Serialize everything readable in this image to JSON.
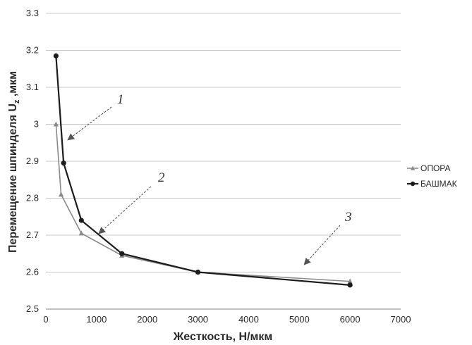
{
  "chart_data": {
    "type": "line",
    "title": "",
    "xlabel": "Жесткость, Н/мкм",
    "ylabel": "Перемещение шпинделя Uz ,мкм",
    "ylabel_main": "Перемещение шпинделя U",
    "ylabel_sub": "z",
    "ylabel_tail": " ,мкм",
    "xlim": [
      0,
      7000
    ],
    "ylim": [
      2.5,
      3.3
    ],
    "x_ticks": [
      "0",
      "1000",
      "2000",
      "3000",
      "4000",
      "5000",
      "6000",
      "7000"
    ],
    "y_ticks": [
      "2.5",
      "2.6",
      "2.7",
      "2.8",
      "2.9",
      "3",
      "3.1",
      "3.2",
      "3.3"
    ],
    "grid": "horizontal",
    "legend": "right",
    "series": [
      {
        "name": "ОПОРА",
        "color": "#8a8a8a",
        "marker": "triangle",
        "x": [
          200,
          300,
          700,
          1500,
          3000,
          6000
        ],
        "y": [
          3.0,
          2.81,
          2.705,
          2.645,
          2.6,
          2.575
        ]
      },
      {
        "name": "БАШМАК",
        "color": "#1c1c1c",
        "marker": "circle",
        "x": [
          200,
          350,
          700,
          1500,
          3000,
          6000
        ],
        "y": [
          3.185,
          2.895,
          2.74,
          2.65,
          2.6,
          2.565
        ]
      }
    ],
    "annotations": [
      "1",
      "2",
      "3"
    ]
  }
}
